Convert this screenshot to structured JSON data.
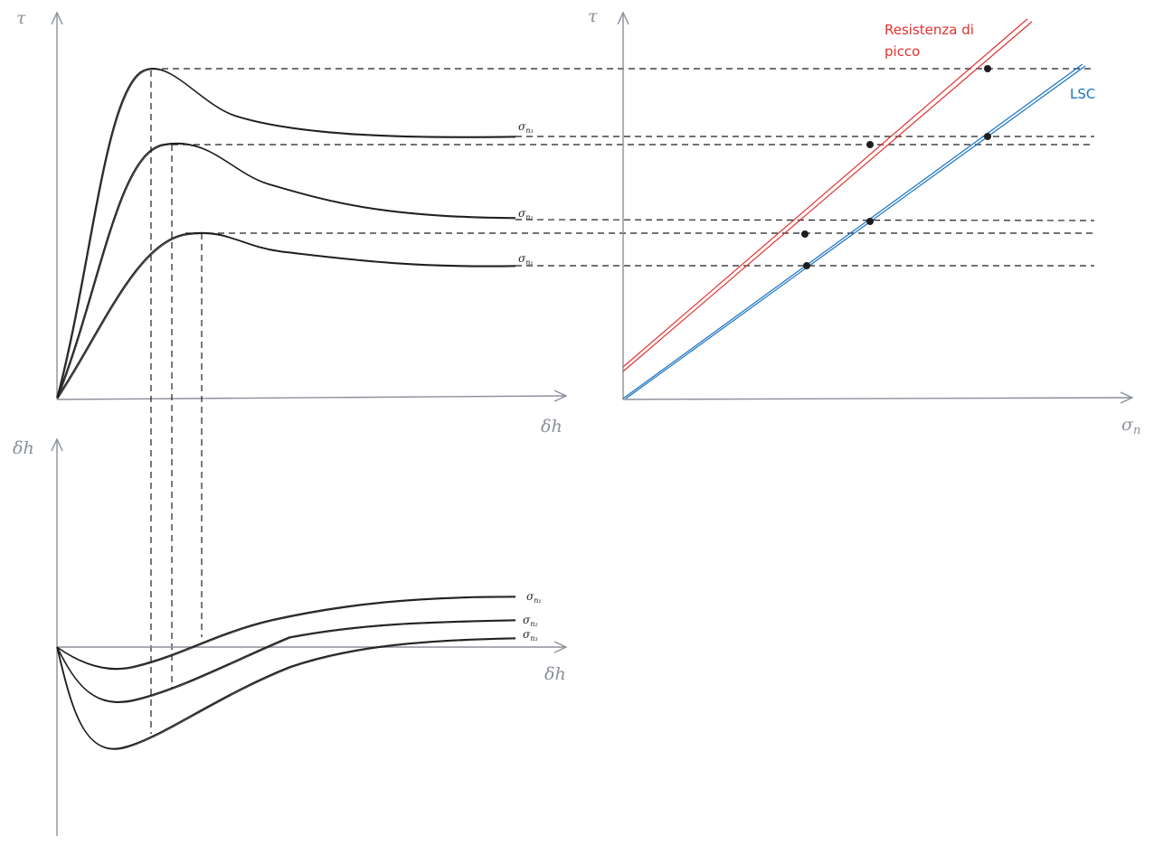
{
  "top_left": {
    "y_axis_label": "τ",
    "x_axis_label": "δh",
    "curve_labels": [
      {
        "base": "σ",
        "sub": "n₃"
      },
      {
        "base": "σ",
        "sub": "n₂"
      },
      {
        "base": "σ",
        "sub": "n₁"
      }
    ]
  },
  "bottom_left": {
    "y_axis_label": "δh",
    "x_axis_label": "δh",
    "curve_labels": [
      {
        "base": "σ",
        "sub": "n₁"
      },
      {
        "base": "σ",
        "sub": "n₂"
      },
      {
        "base": "σ",
        "sub": "n₃"
      }
    ]
  },
  "right": {
    "y_axis_label": "τ",
    "x_axis_label": "σn",
    "peak_line_label_1": "Resistenza di",
    "peak_line_label_2": "picco",
    "residual_line_label": "LSC",
    "peak_color": "#e03131",
    "residual_color": "#1971c2"
  }
}
